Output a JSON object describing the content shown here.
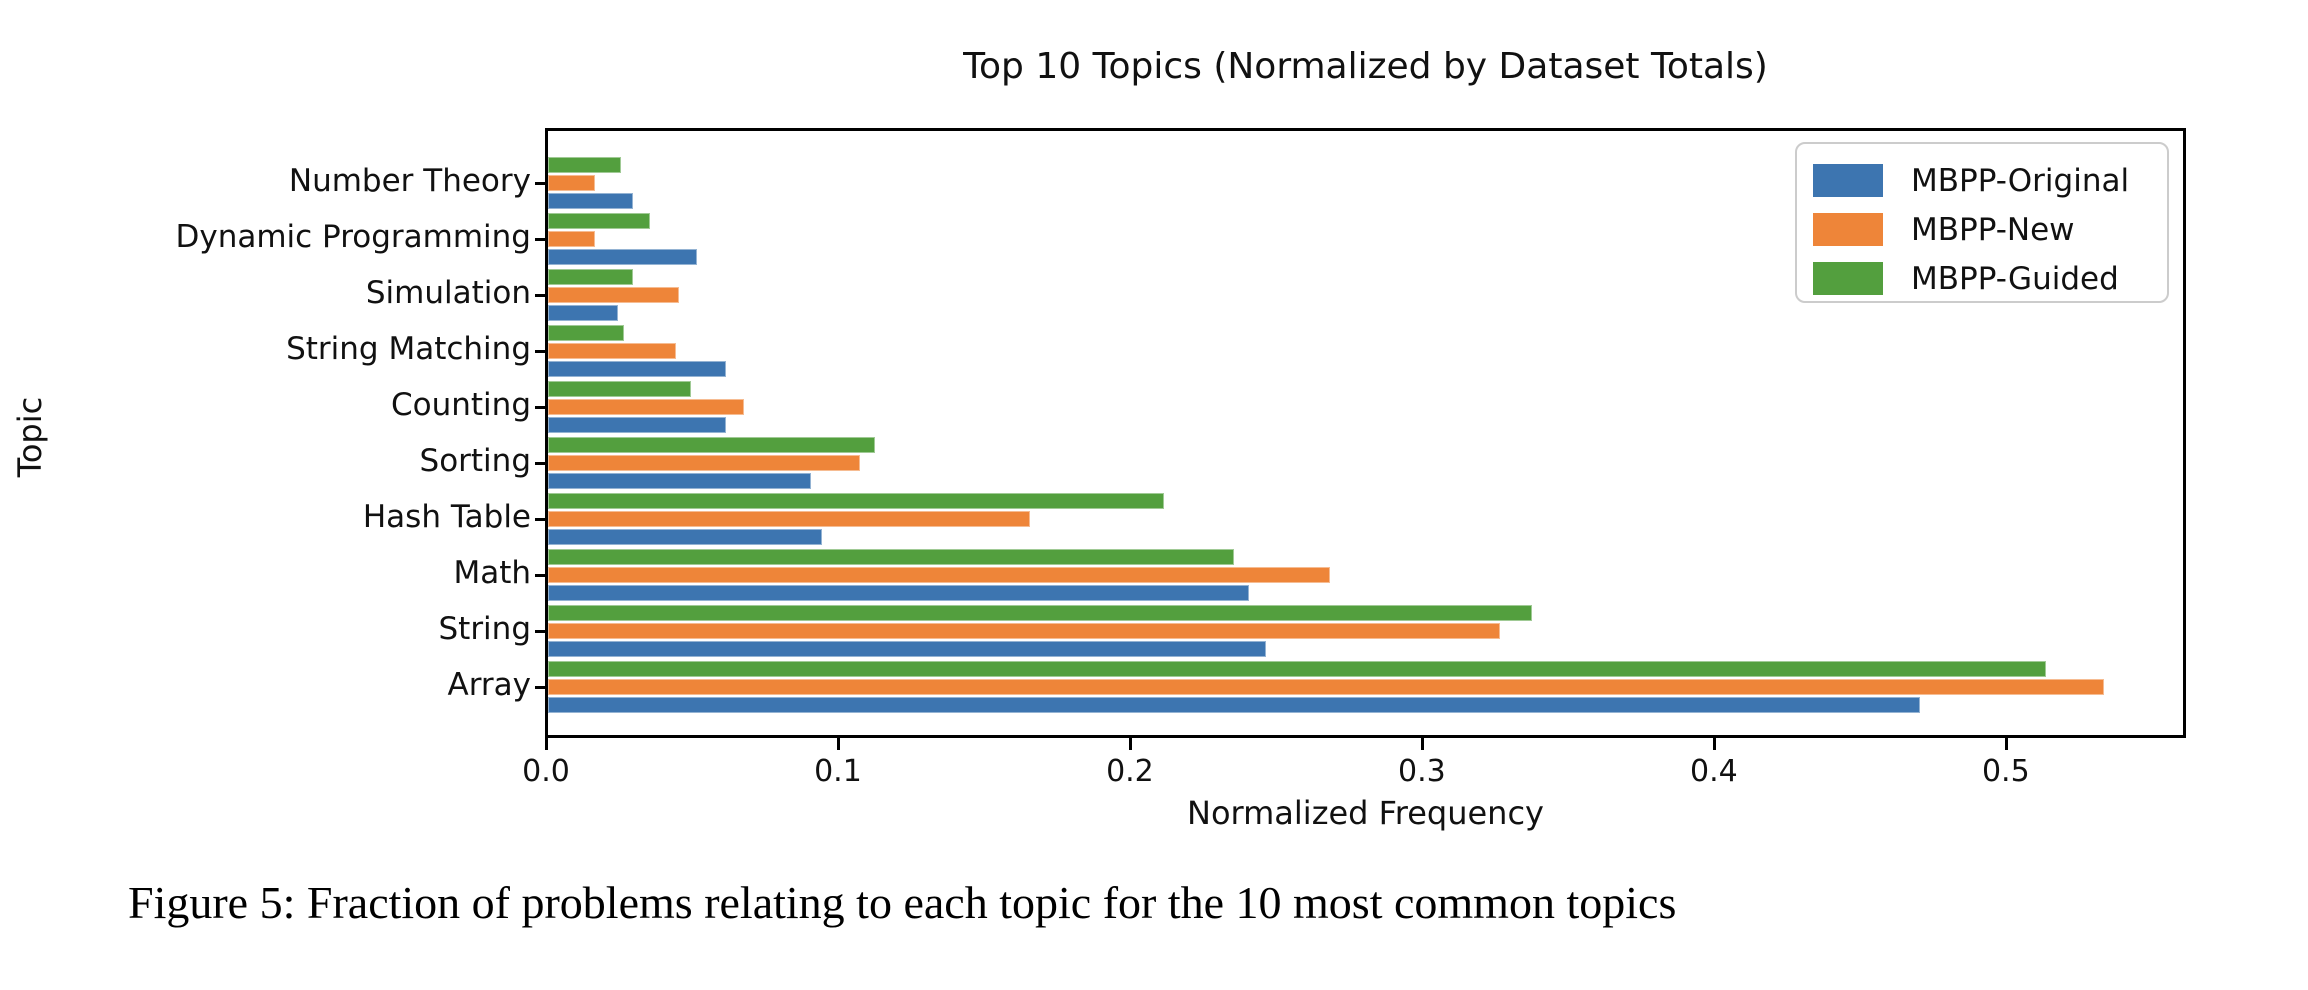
{
  "figure": {
    "caption": "Figure 5: Fraction of problems relating to each topic for the 10 most common topics"
  },
  "chart_data": {
    "type": "bar",
    "orientation": "horizontal",
    "title": "Top 10 Topics (Normalized by Dataset Totals)",
    "xlabel": "Normalized Frequency",
    "ylabel": "Topic",
    "xlim": [
      0,
      0.56
    ],
    "x_ticks": [
      "0.0",
      "0.1",
      "0.2",
      "0.3",
      "0.4",
      "0.5"
    ],
    "x_tick_values": [
      0,
      0.1,
      0.2,
      0.3,
      0.4,
      0.5
    ],
    "grid": false,
    "categories_top_to_bottom": [
      "Number Theory",
      "Dynamic Programming",
      "Simulation",
      "String Matching",
      "Counting",
      "Sorting",
      "Hash Table",
      "Math",
      "String",
      "Array"
    ],
    "series": [
      {
        "name": "MBPP-Original",
        "color": "#3d75b0",
        "values": [
          0.029,
          0.051,
          0.024,
          0.061,
          0.061,
          0.09,
          0.094,
          0.24,
          0.246,
          0.47
        ]
      },
      {
        "name": "MBPP-New",
        "color": "#ee8539",
        "values": [
          0.016,
          0.016,
          0.045,
          0.044,
          0.067,
          0.107,
          0.165,
          0.268,
          0.326,
          0.533
        ]
      },
      {
        "name": "MBPP-Guided",
        "color": "#539f3e",
        "values": [
          0.025,
          0.035,
          0.029,
          0.026,
          0.049,
          0.112,
          0.211,
          0.235,
          0.337,
          0.513
        ]
      }
    ],
    "bar_order_within_group_top_to_bottom": [
      "MBPP-Guided",
      "MBPP-New",
      "MBPP-Original"
    ],
    "legend": {
      "position": "upper right",
      "entries": [
        "MBPP-Original",
        "MBPP-New",
        "MBPP-Guided"
      ]
    }
  }
}
